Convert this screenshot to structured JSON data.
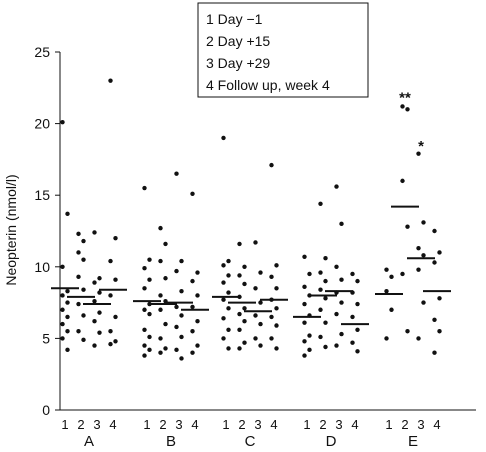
{
  "chart_data": {
    "type": "scatter",
    "title": "",
    "xlabel": "",
    "ylabel": "Neopterin (nmol/l)",
    "ylim": [
      0,
      25
    ],
    "yticks": [
      "0",
      "5",
      "10",
      "15",
      "20",
      "25"
    ],
    "grid": false,
    "legend": {
      "placement": "top-center",
      "entries": [
        "1 Day −1",
        "2 Day +15",
        "3 Day +29",
        "4 Follow up, week 4"
      ]
    },
    "sub_labels": [
      "1",
      "2",
      "3",
      "4"
    ],
    "groups": [
      {
        "name": "A",
        "series": [
          {
            "time": "1",
            "median": 8.5,
            "values": [
              20.1,
              13.7,
              10.0,
              8.3,
              8.0,
              7.5,
              7.0,
              6.5,
              6.0,
              5.5,
              5.0,
              4.2
            ]
          },
          {
            "time": "2",
            "median": 7.9,
            "values": [
              12.3,
              11.8,
              11.0,
              10.5,
              9.3,
              8.4,
              7.4,
              6.6,
              5.5,
              4.9
            ]
          },
          {
            "time": "3",
            "median": 7.4,
            "values": [
              12.4,
              9.2,
              8.9,
              8.2,
              7.6,
              6.8,
              6.2,
              5.4,
              4.5
            ]
          },
          {
            "time": "4",
            "median": 8.4,
            "values": [
              23.0,
              12.0,
              10.4,
              9.1,
              8.0,
              6.5,
              5.5,
              4.8,
              4.6
            ]
          }
        ]
      },
      {
        "name": "B",
        "series": [
          {
            "time": "1",
            "median": 7.6,
            "values": [
              15.5,
              10.5,
              9.9,
              9.1,
              8.5,
              7.4,
              7.0,
              6.7,
              5.6,
              5.1,
              4.5,
              4.2,
              3.8
            ]
          },
          {
            "time": "2",
            "median": 7.4,
            "values": [
              12.7,
              11.6,
              10.4,
              9.2,
              8.0,
              7.6,
              7.0,
              6.0,
              5.0,
              4.3,
              4.0
            ]
          },
          {
            "time": "3",
            "median": 7.5,
            "values": [
              16.5,
              10.4,
              9.7,
              8.3,
              7.2,
              6.6,
              5.8,
              5.1,
              4.2,
              3.6
            ]
          },
          {
            "time": "4",
            "median": 7.0,
            "values": [
              15.1,
              9.6,
              9.0,
              8.0,
              7.2,
              6.2,
              5.5,
              4.5,
              4.0
            ]
          }
        ]
      },
      {
        "name": "C",
        "series": [
          {
            "time": "1",
            "median": 7.9,
            "values": [
              19.0,
              10.4,
              10.1,
              9.4,
              8.9,
              8.2,
              7.7,
              7.1,
              6.4,
              5.6,
              5.0,
              4.3
            ]
          },
          {
            "time": "2",
            "median": 7.5,
            "values": [
              11.6,
              10.0,
              9.4,
              8.8,
              7.9,
              7.1,
              6.7,
              6.2,
              5.6,
              4.7,
              4.3
            ]
          },
          {
            "time": "3",
            "median": 6.9,
            "values": [
              11.7,
              9.6,
              8.5,
              7.5,
              6.6,
              6.0,
              5.0,
              4.5
            ]
          },
          {
            "time": "4",
            "median": 7.7,
            "values": [
              17.1,
              10.1,
              9.3,
              8.5,
              7.7,
              7.1,
              6.5,
              5.9,
              5.0,
              4.3
            ]
          }
        ]
      },
      {
        "name": "D",
        "series": [
          {
            "time": "1",
            "median": 6.5,
            "values": [
              10.7,
              9.5,
              8.6,
              8.0,
              7.4,
              6.6,
              6.1,
              5.2,
              4.8,
              4.2,
              3.8
            ]
          },
          {
            "time": "2",
            "median": 8.0,
            "values": [
              14.4,
              10.6,
              9.6,
              9.0,
              8.4,
              7.8,
              7.0,
              6.1,
              5.1,
              4.4
            ]
          },
          {
            "time": "3",
            "median": 8.3,
            "values": [
              15.6,
              13.0,
              10.0,
              9.1,
              8.2,
              7.5,
              6.7,
              5.3,
              4.5
            ]
          },
          {
            "time": "4",
            "median": 6.0,
            "values": [
              9.5,
              9.0,
              8.2,
              7.4,
              6.5,
              5.6,
              4.7,
              4.1
            ]
          }
        ]
      },
      {
        "name": "E",
        "series": [
          {
            "time": "1",
            "median": 8.1,
            "values": [
              9.8,
              9.3,
              8.3,
              7.0,
              5.0
            ]
          },
          {
            "time": "2",
            "median": 14.2,
            "values": [
              21.2,
              21.0,
              16.0,
              12.8,
              9.5,
              5.5
            ]
          },
          {
            "time": "3",
            "median": 10.6,
            "values": [
              17.9,
              13.1,
              11.3,
              10.8,
              9.8,
              7.5,
              5.0
            ]
          },
          {
            "time": "4",
            "median": 8.3,
            "values": [
              12.5,
              11.0,
              10.3,
              7.8,
              6.3,
              5.5,
              4.0
            ]
          }
        ]
      }
    ],
    "annotations": [
      {
        "text": "**",
        "group": "E",
        "time": "2",
        "y": 21.9
      },
      {
        "text": "*",
        "group": "E",
        "time": "3",
        "y": 18.5
      }
    ]
  }
}
